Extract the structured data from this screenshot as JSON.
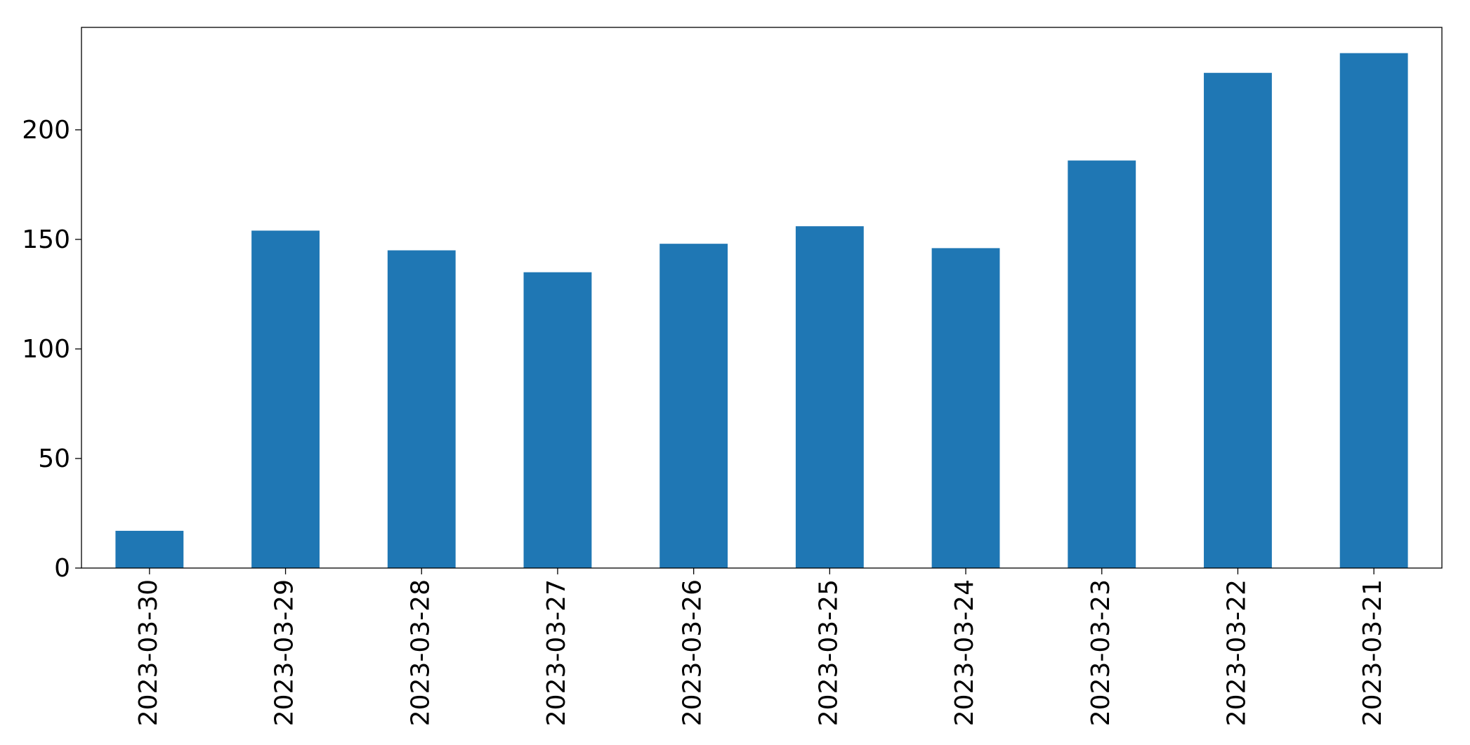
{
  "chart_data": {
    "type": "bar",
    "categories": [
      "2023-03-30",
      "2023-03-29",
      "2023-03-28",
      "2023-03-27",
      "2023-03-26",
      "2023-03-25",
      "2023-03-24",
      "2023-03-23",
      "2023-03-22",
      "2023-03-21"
    ],
    "values": [
      17,
      154,
      145,
      135,
      148,
      156,
      146,
      186,
      226,
      235
    ],
    "color": "#1f77b4",
    "ylim": [
      0,
      246.75
    ],
    "yticks": [
      0,
      50,
      100,
      150,
      200
    ],
    "grid": false
  }
}
